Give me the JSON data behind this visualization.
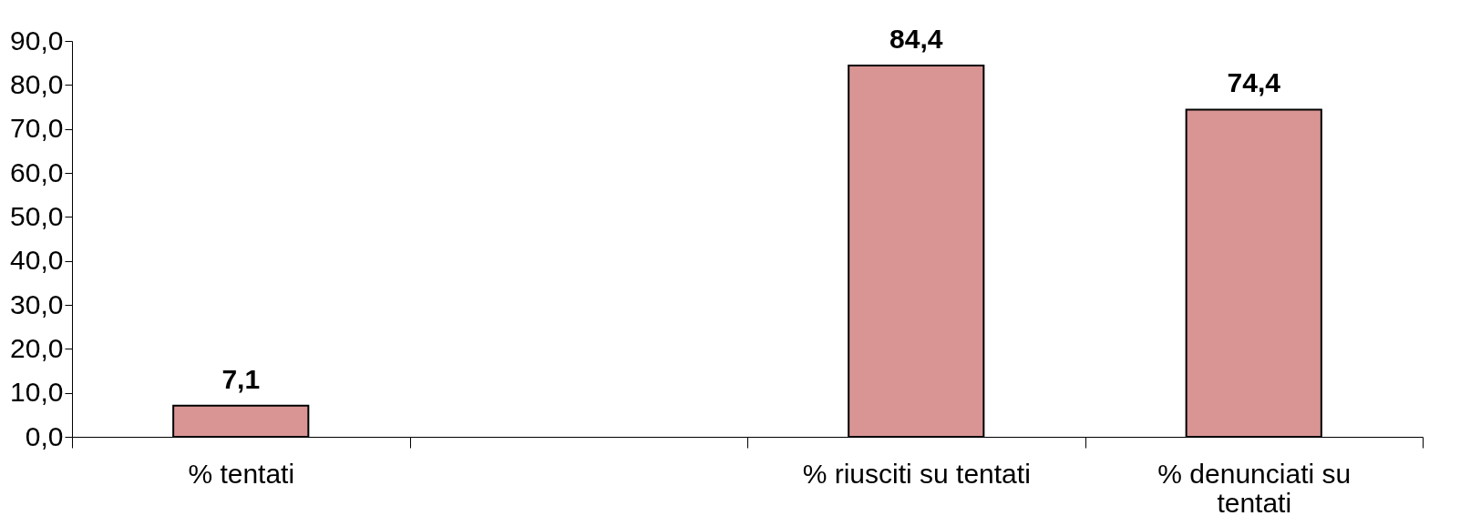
{
  "chart_data": {
    "type": "bar",
    "categories": [
      "% tentati",
      null,
      "% riusciti su tentati",
      "% denunciati su tentati"
    ],
    "values": [
      7.1,
      null,
      84.4,
      74.4
    ],
    "value_labels": [
      "7,1",
      null,
      "84,4",
      "74,4"
    ],
    "color": "#d99594",
    "ylim": [
      0,
      90
    ],
    "yticks": [
      {
        "value": 0,
        "label": "0,0"
      },
      {
        "value": 10,
        "label": "10,0"
      },
      {
        "value": 20,
        "label": "20,0"
      },
      {
        "value": 30,
        "label": "30,0"
      },
      {
        "value": 40,
        "label": "40,0"
      },
      {
        "value": 50,
        "label": "50,0"
      },
      {
        "value": 60,
        "label": "60,0"
      },
      {
        "value": 70,
        "label": "70,0"
      },
      {
        "value": 80,
        "label": "80,0"
      },
      {
        "value": 90,
        "label": "90,0"
      }
    ],
    "grid": false
  }
}
